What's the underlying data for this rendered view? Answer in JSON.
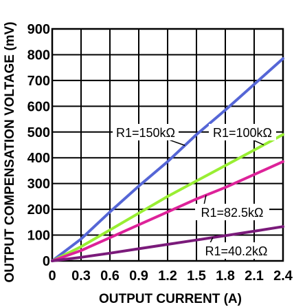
{
  "chart_data": {
    "type": "line",
    "title": "",
    "xlabel": "OUTPUT CURRENT (A)",
    "ylabel": "OUTPUT COMPENSATION VOLTAGE (mV)",
    "xlim": [
      0,
      2.4
    ],
    "ylim": [
      0,
      900
    ],
    "xticks": [
      "0",
      "0.3",
      "0.6",
      "0.9",
      "1.2",
      "1.5",
      "1.8",
      "2.1",
      "2.4"
    ],
    "yticks": [
      "0",
      "100",
      "200",
      "300",
      "400",
      "500",
      "600",
      "700",
      "800",
      "900"
    ],
    "grid": true,
    "series": [
      {
        "name": "R1=150kΩ",
        "color": "#5566d6",
        "points": [
          [
            0,
            0
          ],
          [
            0.3,
            85
          ],
          [
            0.6,
            190
          ],
          [
            0.9,
            290
          ],
          [
            1.2,
            385
          ],
          [
            1.5,
            490
          ],
          [
            1.8,
            585
          ],
          [
            2.1,
            685
          ],
          [
            2.4,
            785
          ]
        ]
      },
      {
        "name": "R1=100kΩ",
        "color": "#99ee33",
        "points": [
          [
            0,
            0
          ],
          [
            0.3,
            55
          ],
          [
            0.6,
            120
          ],
          [
            0.9,
            185
          ],
          [
            1.2,
            250
          ],
          [
            1.5,
            310
          ],
          [
            1.8,
            370
          ],
          [
            2.1,
            430
          ],
          [
            2.4,
            490
          ]
        ]
      },
      {
        "name": "R1=82.5kΩ",
        "color": "#dd2299",
        "points": [
          [
            0,
            0
          ],
          [
            0.3,
            40
          ],
          [
            0.6,
            90
          ],
          [
            0.9,
            140
          ],
          [
            1.2,
            190
          ],
          [
            1.5,
            240
          ],
          [
            1.8,
            285
          ],
          [
            2.1,
            335
          ],
          [
            2.4,
            385
          ]
        ]
      },
      {
        "name": "R1=40.2kΩ",
        "color": "#7a1a7a",
        "points": [
          [
            0,
            0
          ],
          [
            0.3,
            14
          ],
          [
            0.6,
            30
          ],
          [
            0.9,
            47
          ],
          [
            1.2,
            64
          ],
          [
            1.5,
            81
          ],
          [
            1.8,
            98
          ],
          [
            2.1,
            115
          ],
          [
            2.4,
            133
          ]
        ]
      }
    ],
    "annotations": [
      {
        "text": "R1=150kΩ",
        "target_series": 0
      },
      {
        "text": "R1=100kΩ",
        "target_series": 1
      },
      {
        "text": "R1=82.5kΩ",
        "target_series": 2
      },
      {
        "text": "R1=40.2kΩ",
        "target_series": 3
      }
    ]
  }
}
